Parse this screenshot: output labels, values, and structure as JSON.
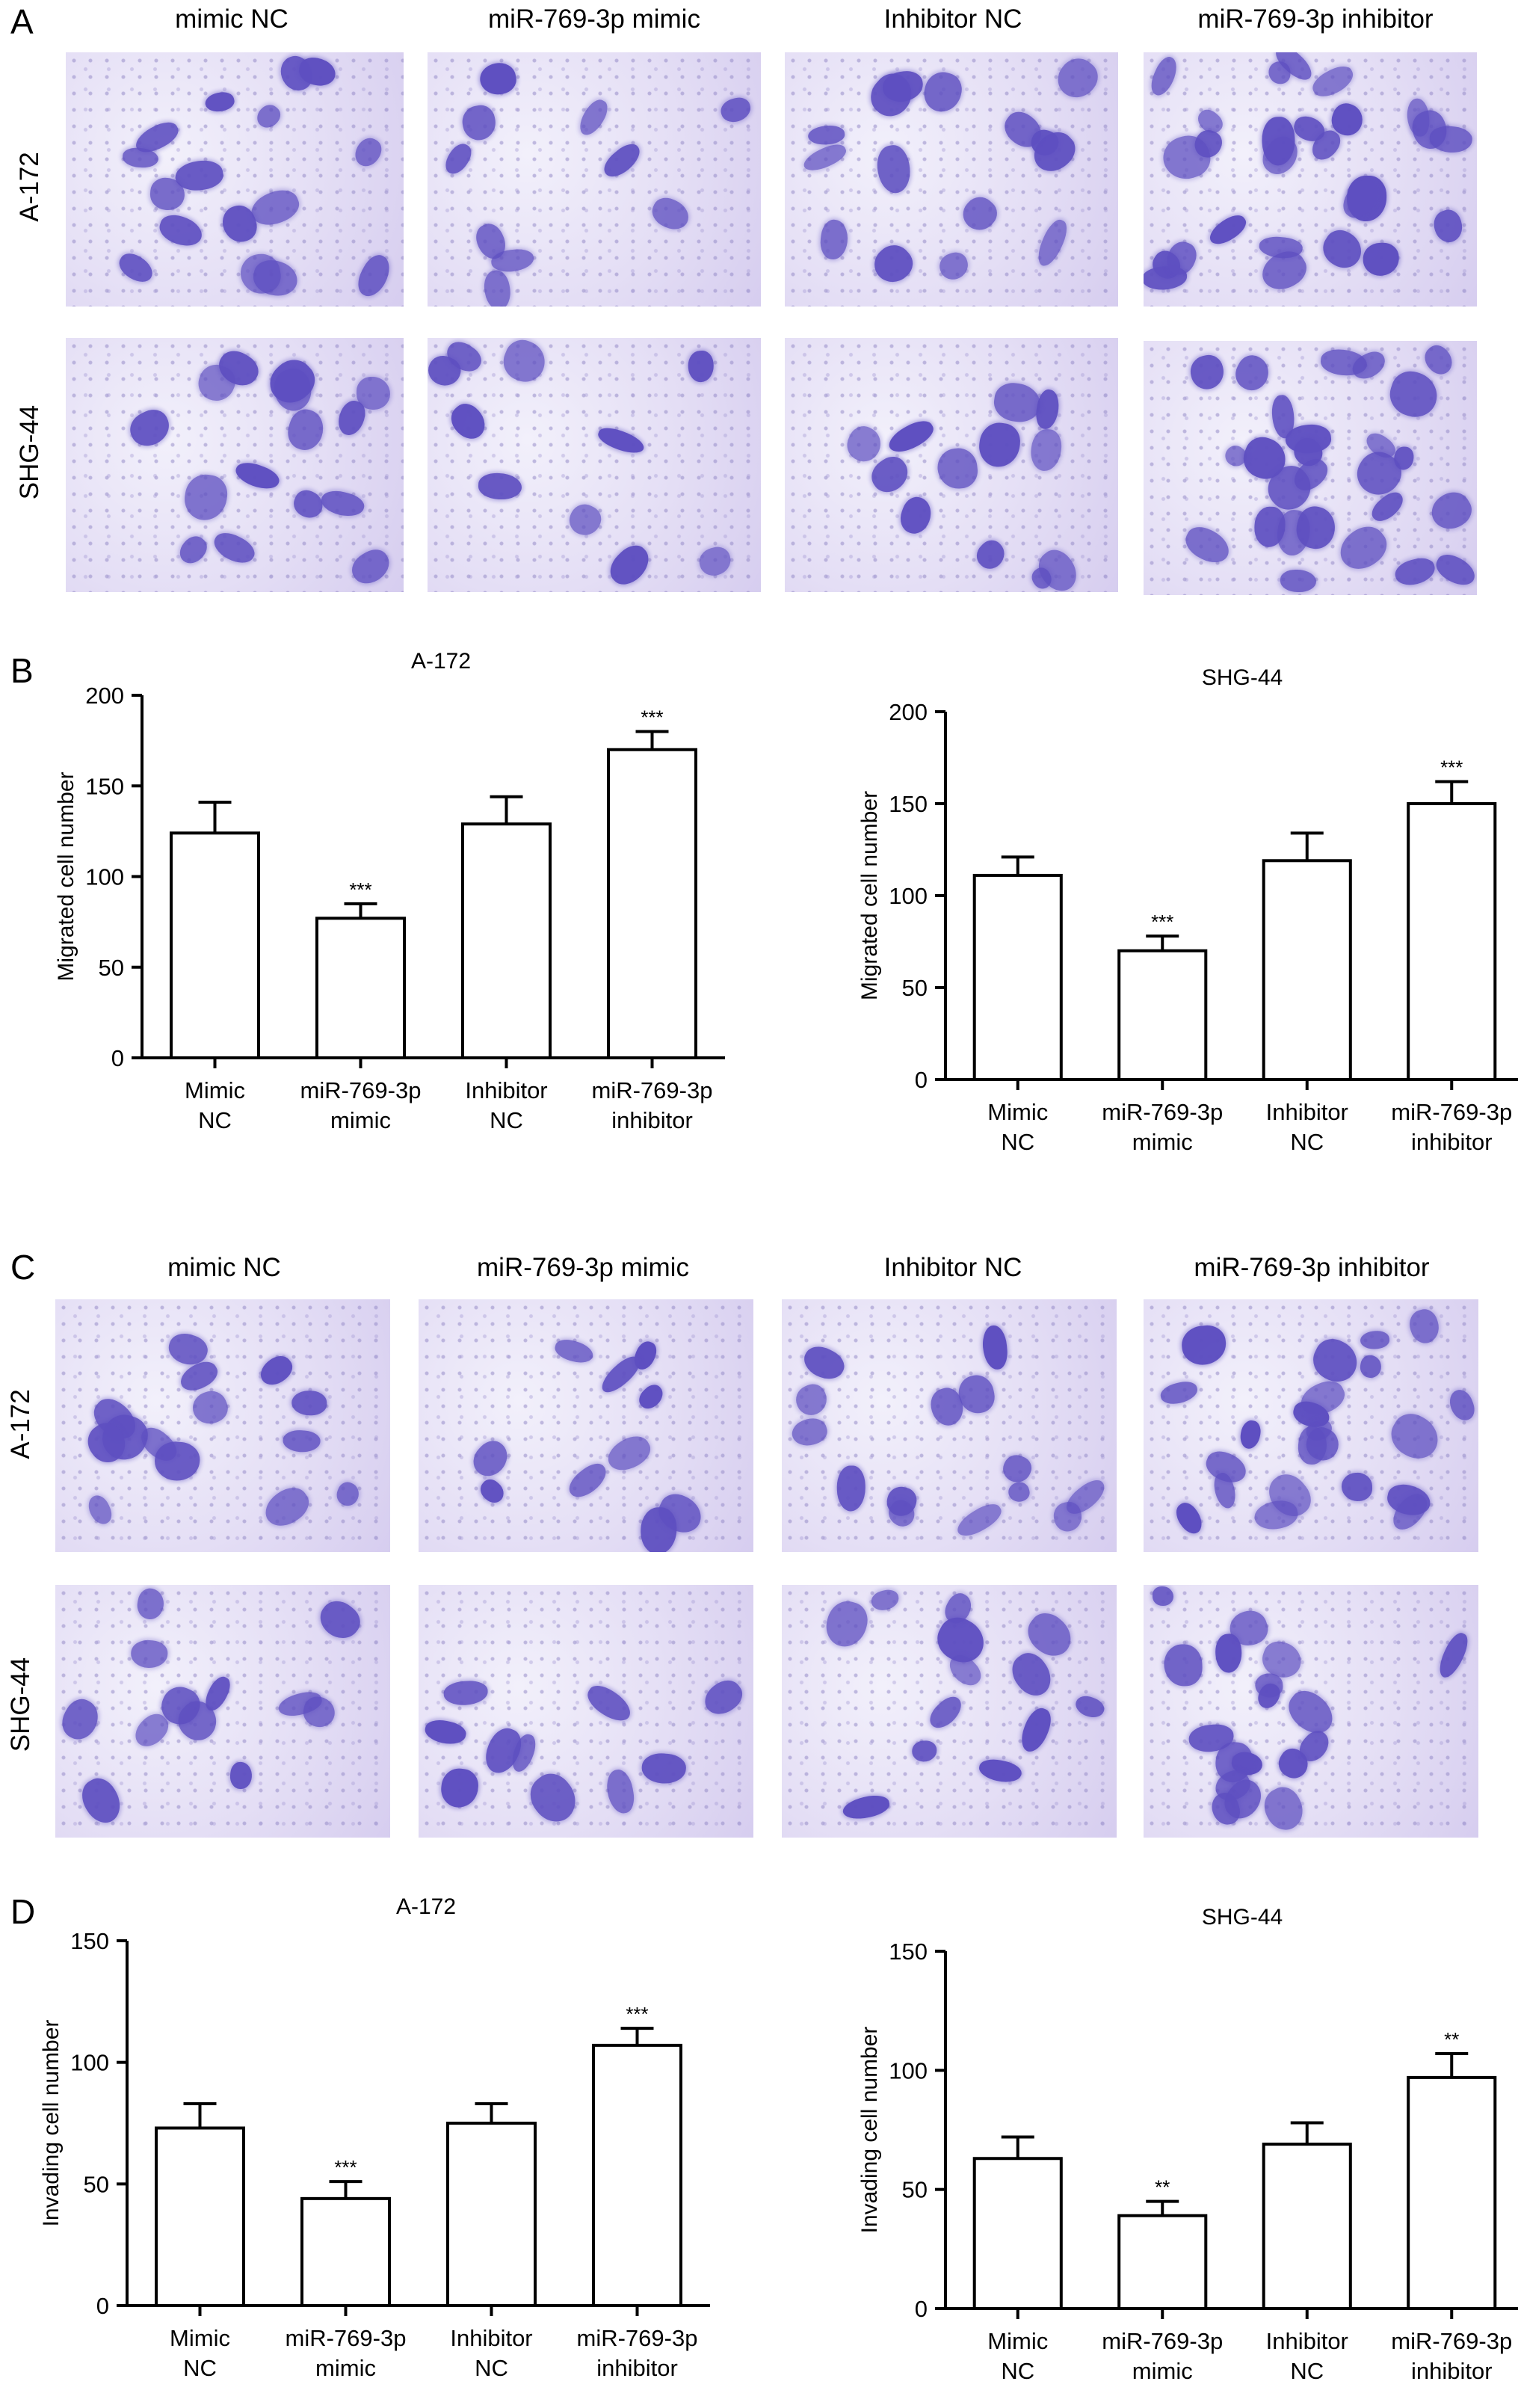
{
  "figure": {
    "column_titles_top": [
      "mimic NC",
      "miR-769-3p mimic",
      "Inhibitor NC",
      "miR-769-3p inhibitor"
    ],
    "column_titles_bottom": [
      "mimic NC",
      "miR-769-3p mimic",
      "Inhibitor NC",
      "miR-769-3p inhibitor"
    ],
    "row_labels": [
      "A-172",
      "SHG-44"
    ],
    "panel_letters": [
      "A",
      "B",
      "C",
      "D"
    ],
    "stain_color": "#5e4fc1",
    "background_color": "#e4def5"
  },
  "chart_data": [
    {
      "type": "bar",
      "panel": "B",
      "title": "A-172",
      "ylabel": "Migrated cell number",
      "xlabel": "",
      "categories": [
        "Mimic NC",
        "miR-769-3p mimic",
        "Inhibitor NC",
        "miR-769-3p inhibitor"
      ],
      "category_lines": [
        [
          "Mimic",
          "NC"
        ],
        [
          "miR-769-3p",
          "mimic"
        ],
        [
          "Inhibitor",
          "NC"
        ],
        [
          "miR-769-3p",
          "inhibitor"
        ]
      ],
      "values": [
        124,
        77,
        129,
        170
      ],
      "errors": [
        17,
        8,
        15,
        10
      ],
      "significance": [
        "",
        "***",
        "",
        "***"
      ],
      "ylim": [
        0,
        200
      ],
      "yticks": [
        0,
        50,
        100,
        150,
        200
      ]
    },
    {
      "type": "bar",
      "panel": "B",
      "title": "SHG-44",
      "ylabel": "Migrated cell number",
      "xlabel": "",
      "categories": [
        "Mimic NC",
        "miR-769-3p mimic",
        "Inhibitor NC",
        "miR-769-3p inhibitor"
      ],
      "category_lines": [
        [
          "Mimic",
          "NC"
        ],
        [
          "miR-769-3p",
          "mimic"
        ],
        [
          "Inhibitor",
          "NC"
        ],
        [
          "miR-769-3p",
          "inhibitor"
        ]
      ],
      "values": [
        111,
        70,
        119,
        150
      ],
      "errors": [
        10,
        8,
        15,
        12
      ],
      "significance": [
        "",
        "***",
        "",
        "***"
      ],
      "ylim": [
        0,
        200
      ],
      "yticks": [
        0,
        50,
        100,
        150,
        200
      ]
    },
    {
      "type": "bar",
      "panel": "D",
      "title": "A-172",
      "ylabel": "Invading cell number",
      "xlabel": "",
      "categories": [
        "Mimic NC",
        "miR-769-3p mimic",
        "Inhibitor NC",
        "miR-769-3p inhibitor"
      ],
      "category_lines": [
        [
          "Mimic",
          "NC"
        ],
        [
          "miR-769-3p",
          "mimic"
        ],
        [
          "Inhibitor",
          "NC"
        ],
        [
          "miR-769-3p",
          "inhibitor"
        ]
      ],
      "values": [
        73,
        44,
        75,
        107
      ],
      "errors": [
        10,
        7,
        8,
        7
      ],
      "significance": [
        "",
        "***",
        "",
        "***"
      ],
      "ylim": [
        0,
        150
      ],
      "yticks": [
        0,
        50,
        100,
        150
      ]
    },
    {
      "type": "bar",
      "panel": "D",
      "title": "SHG-44",
      "ylabel": "Invading cell number",
      "xlabel": "",
      "categories": [
        "Mimic NC",
        "miR-769-3p mimic",
        "Inhibitor NC",
        "miR-769-3p inhibitor"
      ],
      "category_lines": [
        [
          "Mimic",
          "NC"
        ],
        [
          "miR-769-3p",
          "mimic"
        ],
        [
          "Inhibitor",
          "NC"
        ],
        [
          "miR-769-3p",
          "inhibitor"
        ]
      ],
      "values": [
        63,
        39,
        69,
        97
      ],
      "errors": [
        9,
        6,
        9,
        10
      ],
      "significance": [
        "",
        "**",
        "",
        "**"
      ],
      "ylim": [
        0,
        150
      ],
      "yticks": [
        0,
        50,
        100,
        150
      ]
    }
  ]
}
